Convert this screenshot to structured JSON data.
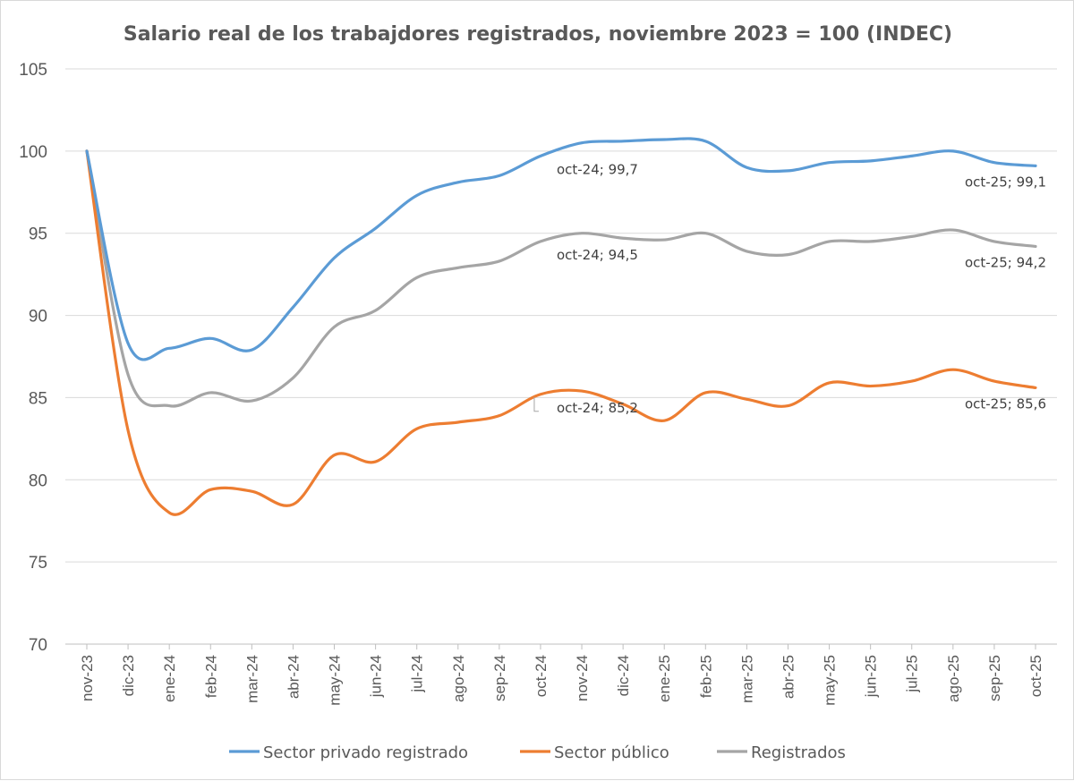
{
  "chart_data": {
    "type": "line",
    "title": "Salario real de los trabajdores registrados, noviembre 2023 = 100 (INDEC)",
    "xlabel": "",
    "ylabel": "",
    "ylim": [
      70,
      105
    ],
    "yticks": [
      70,
      75,
      80,
      85,
      90,
      95,
      100,
      105
    ],
    "grid": true,
    "legend_position": "bottom",
    "categories": [
      "nov-23",
      "dic-23",
      "ene-24",
      "feb-24",
      "mar-24",
      "abr-24",
      "may-24",
      "jun-24",
      "jul-24",
      "ago-24",
      "sep-24",
      "oct-24",
      "nov-24",
      "dic-24",
      "ene-25",
      "feb-25",
      "mar-25",
      "abr-25",
      "may-25",
      "jun-25",
      "jul-25",
      "ago-25",
      "sep-25",
      "oct-25"
    ],
    "series": [
      {
        "name": "Sector privado registrado",
        "color": "#5b9bd5",
        "values": [
          100,
          88.3,
          88.0,
          88.6,
          87.9,
          90.5,
          93.5,
          95.3,
          97.3,
          98.1,
          98.5,
          99.7,
          100.5,
          100.6,
          100.7,
          100.6,
          99.0,
          98.8,
          99.3,
          99.4,
          99.7,
          100.0,
          99.3,
          99.1
        ],
        "labels": [
          {
            "index": 11,
            "text": "oct-24; 99,7",
            "placement": "below"
          },
          {
            "index": 23,
            "text": "oct-25; 99,1",
            "placement": "below"
          }
        ]
      },
      {
        "name": "Sector público",
        "color": "#ed7d31",
        "values": [
          100,
          83.0,
          78.0,
          79.4,
          79.3,
          78.5,
          81.5,
          81.1,
          83.1,
          83.5,
          83.9,
          85.2,
          85.4,
          84.6,
          83.6,
          85.3,
          84.9,
          84.5,
          85.9,
          85.7,
          86.0,
          86.7,
          86.0,
          85.6
        ],
        "labels": [
          {
            "index": 11,
            "text": "oct-24; 85,2",
            "placement": "below-callout"
          },
          {
            "index": 23,
            "text": "oct-25; 85,6",
            "placement": "below"
          }
        ]
      },
      {
        "name": "Registrados",
        "color": "#a5a5a5",
        "values": [
          100,
          86.4,
          84.5,
          85.3,
          84.8,
          86.2,
          89.3,
          90.3,
          92.3,
          92.9,
          93.3,
          94.5,
          95.0,
          94.7,
          94.6,
          95.0,
          93.9,
          93.7,
          94.5,
          94.5,
          94.8,
          95.2,
          94.5,
          94.2
        ],
        "labels": [
          {
            "index": 11,
            "text": "oct-24; 94,5",
            "placement": "below"
          },
          {
            "index": 23,
            "text": "oct-25; 94,2",
            "placement": "below"
          }
        ]
      }
    ]
  }
}
